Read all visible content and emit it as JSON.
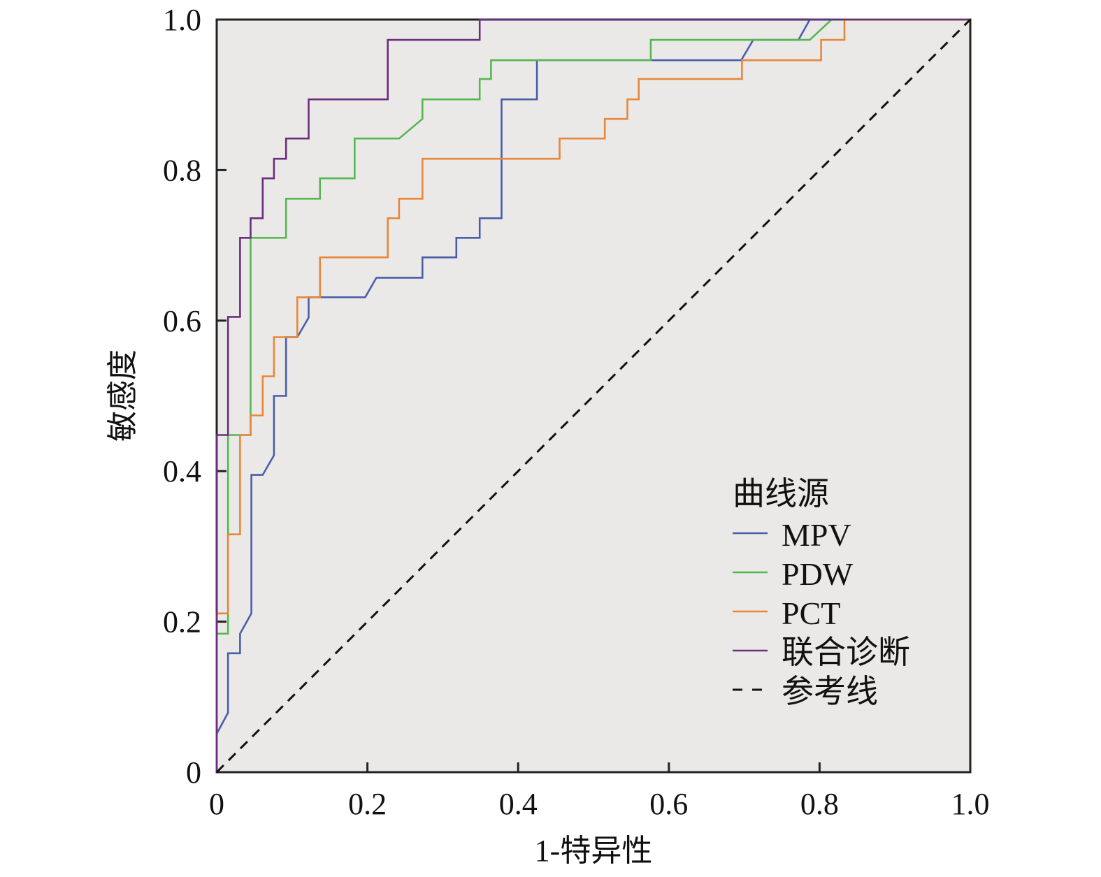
{
  "chart_data": {
    "type": "line",
    "title": "",
    "xlabel": "1-特异性",
    "ylabel": "敏感度",
    "xlim": [
      0,
      1
    ],
    "ylim": [
      0,
      1
    ],
    "xticks": [
      "0",
      "0.2",
      "0.4",
      "0.6",
      "0.8",
      "1.0"
    ],
    "yticks": [
      "0",
      "0.2",
      "0.4",
      "0.6",
      "0.8",
      "1.0"
    ],
    "grid": false,
    "background": "#ebe9e7",
    "legend": {
      "title": "曲线源",
      "placement": "center-right"
    },
    "series": [
      {
        "name": "MPV",
        "color": "#4a5ea8",
        "dashed": false,
        "points": [
          [
            0,
            0
          ],
          [
            0,
            0.051
          ],
          [
            0.015,
            0.079
          ],
          [
            0.015,
            0.158
          ],
          [
            0.031,
            0.158
          ],
          [
            0.031,
            0.184
          ],
          [
            0.046,
            0.211
          ],
          [
            0.046,
            0.395
          ],
          [
            0.061,
            0.395
          ],
          [
            0.076,
            0.421
          ],
          [
            0.076,
            0.5
          ],
          [
            0.092,
            0.5
          ],
          [
            0.092,
            0.578
          ],
          [
            0.107,
            0.578
          ],
          [
            0.122,
            0.604
          ],
          [
            0.122,
            0.631
          ],
          [
            0.197,
            0.631
          ],
          [
            0.212,
            0.657
          ],
          [
            0.273,
            0.657
          ],
          [
            0.273,
            0.684
          ],
          [
            0.318,
            0.684
          ],
          [
            0.318,
            0.71
          ],
          [
            0.349,
            0.71
          ],
          [
            0.349,
            0.736
          ],
          [
            0.378,
            0.736
          ],
          [
            0.378,
            0.894
          ],
          [
            0.425,
            0.894
          ],
          [
            0.425,
            0.946
          ],
          [
            0.696,
            0.946
          ],
          [
            0.712,
            0.973
          ],
          [
            0.772,
            0.973
          ],
          [
            0.787,
            1
          ],
          [
            1,
            1
          ]
        ]
      },
      {
        "name": "PDW",
        "color": "#55b752",
        "dashed": false,
        "points": [
          [
            0,
            0
          ],
          [
            0,
            0.184
          ],
          [
            0.015,
            0.184
          ],
          [
            0.015,
            0.448
          ],
          [
            0.045,
            0.448
          ],
          [
            0.045,
            0.71
          ],
          [
            0.092,
            0.71
          ],
          [
            0.092,
            0.762
          ],
          [
            0.137,
            0.762
          ],
          [
            0.137,
            0.789
          ],
          [
            0.183,
            0.789
          ],
          [
            0.183,
            0.842
          ],
          [
            0.242,
            0.842
          ],
          [
            0.273,
            0.868
          ],
          [
            0.273,
            0.894
          ],
          [
            0.349,
            0.894
          ],
          [
            0.349,
            0.921
          ],
          [
            0.364,
            0.921
          ],
          [
            0.364,
            0.946
          ],
          [
            0.576,
            0.946
          ],
          [
            0.576,
            0.973
          ],
          [
            0.787,
            0.973
          ],
          [
            0.816,
            1
          ],
          [
            1,
            1
          ]
        ]
      },
      {
        "name": "PCT",
        "color": "#e8873a",
        "dashed": false,
        "points": [
          [
            0,
            0
          ],
          [
            0,
            0.211
          ],
          [
            0.015,
            0.211
          ],
          [
            0.015,
            0.316
          ],
          [
            0.031,
            0.316
          ],
          [
            0.031,
            0.448
          ],
          [
            0.045,
            0.448
          ],
          [
            0.045,
            0.474
          ],
          [
            0.061,
            0.474
          ],
          [
            0.061,
            0.526
          ],
          [
            0.076,
            0.526
          ],
          [
            0.076,
            0.578
          ],
          [
            0.107,
            0.578
          ],
          [
            0.107,
            0.631
          ],
          [
            0.137,
            0.631
          ],
          [
            0.137,
            0.684
          ],
          [
            0.227,
            0.684
          ],
          [
            0.227,
            0.736
          ],
          [
            0.242,
            0.736
          ],
          [
            0.242,
            0.762
          ],
          [
            0.273,
            0.762
          ],
          [
            0.273,
            0.815
          ],
          [
            0.455,
            0.815
          ],
          [
            0.455,
            0.842
          ],
          [
            0.515,
            0.842
          ],
          [
            0.515,
            0.868
          ],
          [
            0.545,
            0.868
          ],
          [
            0.545,
            0.894
          ],
          [
            0.56,
            0.894
          ],
          [
            0.56,
            0.921
          ],
          [
            0.697,
            0.921
          ],
          [
            0.697,
            0.946
          ],
          [
            0.802,
            0.946
          ],
          [
            0.802,
            0.973
          ],
          [
            0.833,
            0.973
          ],
          [
            0.833,
            1
          ],
          [
            1,
            1
          ]
        ]
      },
      {
        "name": "联合诊断",
        "color": "#6b2d7e",
        "dashed": false,
        "points": [
          [
            0,
            0
          ],
          [
            0,
            0.448
          ],
          [
            0.015,
            0.448
          ],
          [
            0.015,
            0.605
          ],
          [
            0.031,
            0.605
          ],
          [
            0.031,
            0.71
          ],
          [
            0.045,
            0.71
          ],
          [
            0.045,
            0.736
          ],
          [
            0.061,
            0.736
          ],
          [
            0.061,
            0.789
          ],
          [
            0.076,
            0.789
          ],
          [
            0.076,
            0.815
          ],
          [
            0.092,
            0.815
          ],
          [
            0.092,
            0.842
          ],
          [
            0.122,
            0.842
          ],
          [
            0.122,
            0.894
          ],
          [
            0.227,
            0.894
          ],
          [
            0.227,
            0.973
          ],
          [
            0.349,
            0.973
          ],
          [
            0.349,
            1
          ],
          [
            1,
            1
          ]
        ]
      },
      {
        "name": "参考线",
        "color": "#111111",
        "dashed": true,
        "points": [
          [
            0,
            0
          ],
          [
            1,
            1
          ]
        ]
      }
    ]
  }
}
